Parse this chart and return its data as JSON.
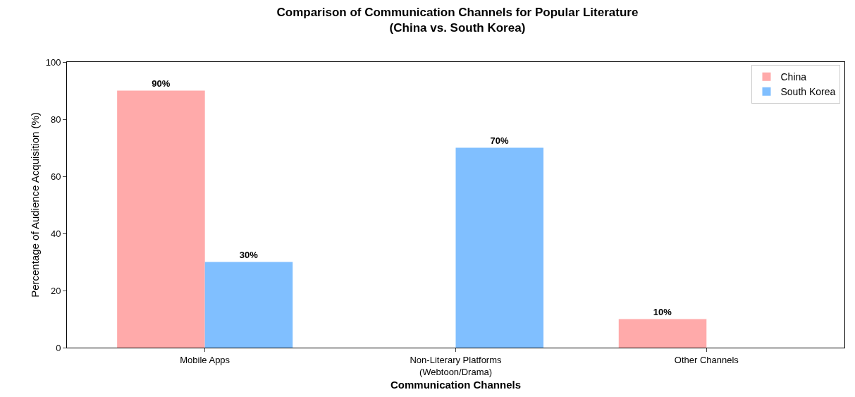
{
  "chart_data": {
    "type": "bar",
    "title": "Comparison of Communication Channels for Popular Literature\n(China vs. South Korea)",
    "xlabel": "Communication Channels",
    "ylabel": "Percentage of Audience Acquisition (%)",
    "categories": [
      "Mobile Apps",
      "Non-Literary Platforms\n(Webtoon/Drama)",
      "Other Channels"
    ],
    "series": [
      {
        "name": "China",
        "color": "#ffaaaa",
        "values": [
          90,
          0,
          10
        ],
        "value_labels": [
          "90%",
          null,
          "10%"
        ]
      },
      {
        "name": "South Korea",
        "color": "#80bfff",
        "values": [
          30,
          70,
          0
        ],
        "value_labels": [
          "30%",
          "70%",
          null
        ]
      }
    ],
    "ylim": [
      0,
      100
    ],
    "yticks": [
      0,
      20,
      40,
      60,
      80,
      100
    ],
    "grid": false,
    "legend": "top right"
  }
}
